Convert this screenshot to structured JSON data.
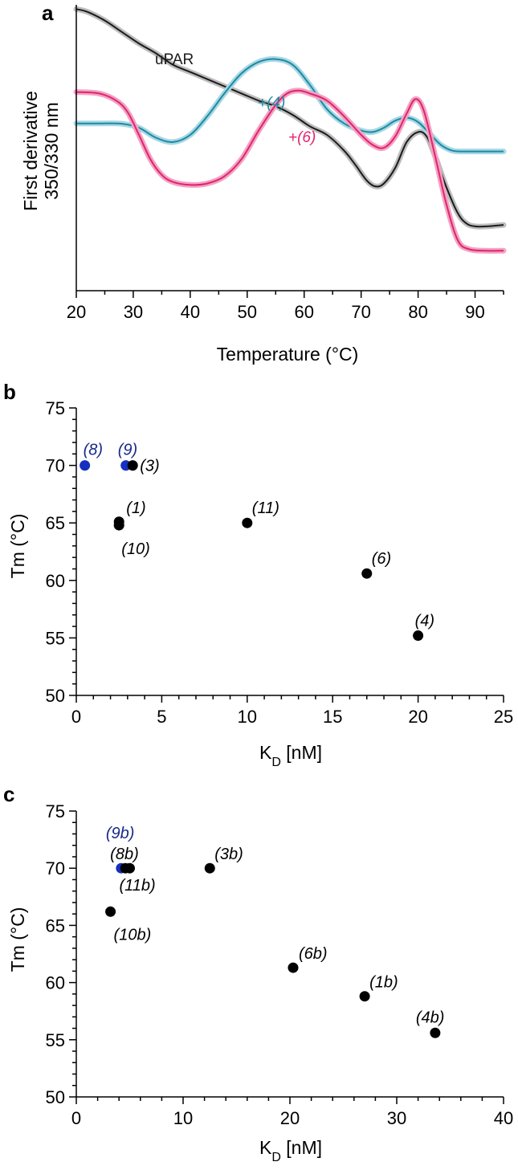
{
  "chart_data": [
    {
      "panel": "a",
      "type": "line",
      "xlabel": "Temperature (°C)",
      "ylabel_lines": [
        "First derivative",
        "350/330 nm"
      ],
      "xlim": [
        20,
        95
      ],
      "ylim": [
        0,
        1
      ],
      "xticks": [
        20,
        30,
        40,
        50,
        60,
        70,
        80,
        90
      ],
      "grid": false,
      "series": [
        {
          "name": "uPAR",
          "color": "#1a1a1a",
          "band": "#bdbdbd",
          "x": [
            20,
            22,
            25,
            28,
            31,
            34,
            37,
            40,
            43,
            46,
            49,
            52,
            55,
            58,
            61,
            64,
            67,
            69,
            71,
            72.5,
            74,
            76,
            78,
            80,
            81.5,
            83,
            85,
            87,
            88.5,
            90,
            92,
            95
          ],
          "y": [
            0.985,
            0.975,
            0.945,
            0.905,
            0.865,
            0.83,
            0.79,
            0.765,
            0.74,
            0.715,
            0.69,
            0.665,
            0.645,
            0.615,
            0.575,
            0.545,
            0.49,
            0.44,
            0.385,
            0.365,
            0.375,
            0.43,
            0.52,
            0.555,
            0.54,
            0.47,
            0.36,
            0.27,
            0.235,
            0.225,
            0.225,
            0.23
          ]
        },
        {
          "name": "+(4)",
          "color": "#1b8aa5",
          "band": "#a9d8e3",
          "x": [
            20,
            24,
            28,
            31,
            34,
            37,
            40,
            43,
            46,
            49,
            52,
            55,
            58,
            61,
            64,
            67,
            70,
            72,
            74,
            76,
            78,
            80,
            82,
            84,
            86,
            88,
            90,
            95
          ],
          "y": [
            0.585,
            0.585,
            0.584,
            0.57,
            0.535,
            0.52,
            0.545,
            0.61,
            0.69,
            0.76,
            0.8,
            0.81,
            0.79,
            0.72,
            0.635,
            0.585,
            0.56,
            0.555,
            0.57,
            0.595,
            0.605,
            0.59,
            0.55,
            0.51,
            0.49,
            0.487,
            0.487,
            0.487
          ]
        },
        {
          "name": "+(6)",
          "color": "#e0236f",
          "band": "#f2a3c3",
          "x": [
            20,
            24,
            27,
            29,
            31,
            33,
            35,
            37,
            40,
            43,
            46,
            49,
            52,
            55,
            57,
            59,
            61,
            64,
            67,
            70,
            72,
            74,
            76,
            78,
            79.5,
            81,
            83,
            85,
            87,
            89,
            92,
            95
          ],
          "y": [
            0.695,
            0.69,
            0.665,
            0.625,
            0.545,
            0.46,
            0.405,
            0.38,
            0.37,
            0.375,
            0.4,
            0.46,
            0.56,
            0.65,
            0.69,
            0.7,
            0.69,
            0.665,
            0.61,
            0.545,
            0.51,
            0.5,
            0.54,
            0.62,
            0.67,
            0.63,
            0.47,
            0.3,
            0.175,
            0.145,
            0.14,
            0.14
          ]
        }
      ],
      "annotations": [
        "uPAR",
        "+(4)",
        "+(6)"
      ]
    },
    {
      "panel": "b",
      "type": "scatter",
      "xlabel": "K",
      "xlabel_sub": "D",
      "xlabel_unit": " [nM]",
      "ylabel": "Tm (°C)",
      "xlim": [
        0,
        25
      ],
      "ylim": [
        50,
        75
      ],
      "xticks": [
        0,
        5,
        10,
        15,
        20,
        25
      ],
      "yticks": [
        50,
        55,
        60,
        65,
        70,
        75
      ],
      "grid": false,
      "points": [
        {
          "label": "(8)",
          "x": 0.5,
          "y": 70.0,
          "color": "#1730c0",
          "label_color": "#1a2a8a"
        },
        {
          "label": "(9)",
          "x": 2.9,
          "y": 70.0,
          "color": "#1730c0",
          "label_color": "#1a2a8a"
        },
        {
          "label": "(3)",
          "x": 3.3,
          "y": 70.0,
          "color": "#000000",
          "label_color": "#000000"
        },
        {
          "label": "(1)",
          "x": 2.5,
          "y": 65.1,
          "color": "#000000",
          "label_color": "#000000"
        },
        {
          "label": "(10)",
          "x": 2.5,
          "y": 64.8,
          "color": "#000000",
          "label_color": "#000000"
        },
        {
          "label": "(11)",
          "x": 10.0,
          "y": 65.0,
          "color": "#000000",
          "label_color": "#000000"
        },
        {
          "label": "(6)",
          "x": 17.0,
          "y": 60.6,
          "color": "#000000",
          "label_color": "#000000"
        },
        {
          "label": "(4)",
          "x": 20.0,
          "y": 55.2,
          "color": "#000000",
          "label_color": "#000000"
        }
      ]
    },
    {
      "panel": "c",
      "type": "scatter",
      "xlabel": "K",
      "xlabel_sub": "D",
      "xlabel_unit": " [nM]",
      "ylabel": "Tm (°C)",
      "xlim": [
        0,
        40
      ],
      "ylim": [
        50,
        75
      ],
      "xticks": [
        0,
        10,
        20,
        30,
        40
      ],
      "yticks": [
        50,
        55,
        60,
        65,
        70,
        75
      ],
      "grid": false,
      "points": [
        {
          "label": "(9b)",
          "x": 4.2,
          "y": 70.0,
          "color": "#1730c0",
          "label_color": "#1a2a8a"
        },
        {
          "label": "(8b)",
          "x": 4.6,
          "y": 70.0,
          "color": "#000000",
          "label_color": "#000000"
        },
        {
          "label": "(11b)",
          "x": 5.0,
          "y": 70.0,
          "color": "#000000",
          "label_color": "#000000"
        },
        {
          "label": "(3b)",
          "x": 12.5,
          "y": 70.0,
          "color": "#000000",
          "label_color": "#000000"
        },
        {
          "label": "(10b)",
          "x": 3.2,
          "y": 66.2,
          "color": "#000000",
          "label_color": "#000000"
        },
        {
          "label": "(6b)",
          "x": 20.3,
          "y": 61.3,
          "color": "#000000",
          "label_color": "#000000"
        },
        {
          "label": "(1b)",
          "x": 27.0,
          "y": 58.8,
          "color": "#000000",
          "label_color": "#000000"
        },
        {
          "label": "(4b)",
          "x": 33.6,
          "y": 55.6,
          "color": "#000000",
          "label_color": "#000000"
        }
      ]
    }
  ]
}
